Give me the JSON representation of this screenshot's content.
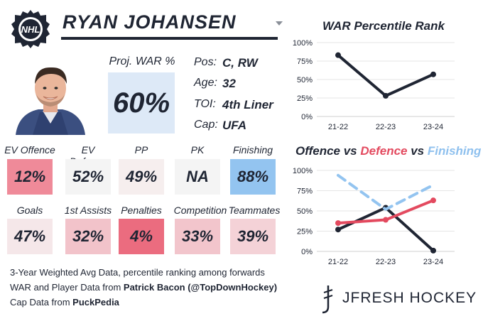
{
  "player": {
    "name": "RYAN JOHANSEN",
    "proj_war_label": "Proj. WAR %",
    "proj_war_value": "60%"
  },
  "info": [
    {
      "label": "Pos:",
      "value": "C, RW"
    },
    {
      "label": "Age:",
      "value": "32"
    },
    {
      "label": "TOI:",
      "value": "4th Liner"
    },
    {
      "label": "Cap:",
      "value": "UFA"
    }
  ],
  "stats_row1": [
    {
      "label": "EV Offence",
      "value": "12%",
      "color": "#ef8a99"
    },
    {
      "label": "EV Defence",
      "value": "52%",
      "color": "#f4f4f4"
    },
    {
      "label": "PP",
      "value": "49%",
      "color": "#f6eeee"
    },
    {
      "label": "PK",
      "value": "NA",
      "color": "#f4f4f4"
    },
    {
      "label": "Finishing",
      "value": "88%",
      "color": "#93c4f0"
    }
  ],
  "stats_row2": [
    {
      "label": "Goals",
      "value": "47%",
      "color": "#f5e7e9"
    },
    {
      "label": "1st Assists",
      "value": "32%",
      "color": "#f2c3ca"
    },
    {
      "label": "Penalties",
      "value": "4%",
      "color": "#eb6c7f"
    },
    {
      "label": "Competition",
      "value": "33%",
      "color": "#f2c5cc"
    },
    {
      "label": "Teammates",
      "value": "39%",
      "color": "#f4d2d7"
    }
  ],
  "footer": {
    "line1": "3-Year Weighted Avg Data, percentile ranking among forwards",
    "line2_prefix": "WAR and Player Data from ",
    "line2_bold": "Patrick Bacon (@TopDownHockey)",
    "line3_prefix": "Cap Data from ",
    "line3_bold": "PuckPedia"
  },
  "brand": {
    "text": "JFRESH HOCKEY"
  },
  "chart_data": [
    {
      "type": "line",
      "title": "WAR Percentile Rank",
      "x": [
        "21-22",
        "22-23",
        "23-24"
      ],
      "ylim": [
        0,
        100
      ],
      "yticks": [
        "0%",
        "25%",
        "50%",
        "75%",
        "100%"
      ],
      "grid": true,
      "series": [
        {
          "values": [
            83,
            28,
            57
          ],
          "color": "#1f2533",
          "dashed": false
        }
      ]
    },
    {
      "type": "line",
      "title_parts": [
        {
          "text": "Offence",
          "color": "#1f2533"
        },
        {
          "text": " vs ",
          "color": "#1f2533"
        },
        {
          "text": "Defence",
          "color": "#e34a5f"
        },
        {
          "text": " vs ",
          "color": "#1f2533"
        },
        {
          "text": "Finishing",
          "color": "#8ec0ee"
        }
      ],
      "x": [
        "21-22",
        "22-23",
        "23-24"
      ],
      "ylim": [
        0,
        100
      ],
      "yticks": [
        "0%",
        "25%",
        "50%",
        "75%",
        "100%"
      ],
      "grid": true,
      "series": [
        {
          "name": "Offence",
          "values": [
            27,
            54,
            1
          ],
          "color": "#1f2533",
          "dashed": false
        },
        {
          "name": "Defence",
          "values": [
            35,
            39,
            63
          ],
          "color": "#e34a5f",
          "dashed": false
        },
        {
          "name": "Finishing",
          "values": [
            94,
            52,
            82
          ],
          "color": "#93c4f0",
          "dashed": true
        }
      ]
    }
  ]
}
